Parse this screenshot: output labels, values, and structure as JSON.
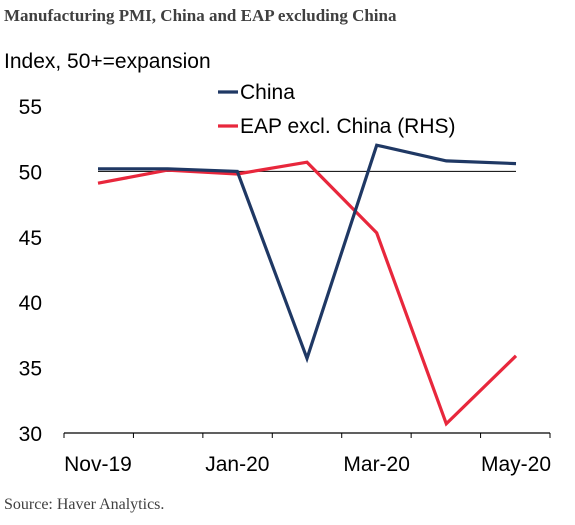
{
  "title": "Manufacturing PMI, China and EAP excluding China",
  "source": "Source: Haver Analytics.",
  "colors": {
    "china": "#1f3864",
    "eap": "#e8273c",
    "reference": "#000000",
    "axis": "#000000"
  },
  "chart_data": {
    "type": "line",
    "ylabel": "Index, 50+=expansion",
    "xlabel": "",
    "x": [
      "Nov-19",
      "Dec-19",
      "Jan-20",
      "Feb-20",
      "Mar-20",
      "Apr-20",
      "May-20"
    ],
    "x_tick_labels": [
      "Nov-19",
      "Jan-20",
      "Mar-20",
      "May-20"
    ],
    "ylim": [
      30,
      55
    ],
    "y_ticks": [
      30,
      35,
      40,
      45,
      50,
      55
    ],
    "reference_line": 50,
    "grid": false,
    "legend_position": "top",
    "series": [
      {
        "name": "China",
        "color": "#1f3864",
        "values": [
          50.2,
          50.2,
          50.0,
          35.7,
          52.0,
          50.8,
          50.6
        ]
      },
      {
        "name": "EAP excl. China (RHS)",
        "color": "#e8273c",
        "values": [
          49.1,
          50.1,
          49.8,
          50.7,
          45.3,
          30.7,
          35.9
        ]
      }
    ]
  }
}
